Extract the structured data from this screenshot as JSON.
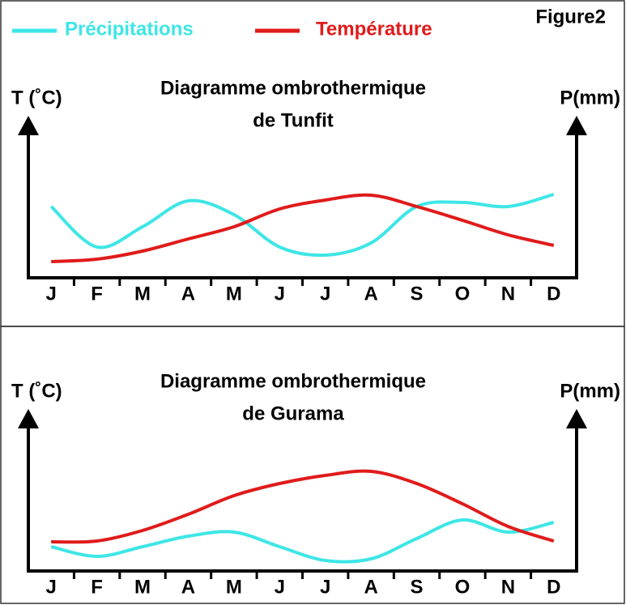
{
  "figure_label": "Figure2",
  "chart_data": [
    {
      "type": "line",
      "title_lines": [
        "Diagramme ombrothermique",
        "de Tunfit"
      ],
      "y_label": "T (˚C)",
      "y2_label": "P(mm)",
      "categories": [
        "J",
        "F",
        "M",
        "A",
        "M",
        "J",
        "J",
        "A",
        "S",
        "O",
        "N",
        "D"
      ],
      "ylim": [
        0,
        100
      ],
      "y2lim": [
        0,
        100
      ],
      "series": [
        {
          "name": "Précipitations",
          "color": "#3ee6e6",
          "axis": "y2",
          "values": [
            44,
            19,
            31.5,
            47.5,
            39,
            19,
            14,
            21.5,
            44,
            46.5,
            44,
            51.5
          ]
        },
        {
          "name": "Température",
          "color": "#e01b1b",
          "values": [
            10,
            11.5,
            16.5,
            24,
            31.5,
            42.5,
            48,
            51,
            44,
            35.5,
            26.5,
            20
          ]
        }
      ]
    },
    {
      "type": "line",
      "title_lines": [
        "Diagramme ombrothermique",
        "de Gurama"
      ],
      "y_label": "T (˚C)",
      "y2_label": "P(mm)",
      "categories": [
        "J",
        "F",
        "M",
        "A",
        "M",
        "J",
        "J",
        "A",
        "S",
        "O",
        "N",
        "D"
      ],
      "ylim": [
        0,
        100
      ],
      "y2lim": [
        0,
        100
      ],
      "series": [
        {
          "name": "Précipitations",
          "color": "#3ee6e6",
          "axis": "y2",
          "values": [
            15,
            9,
            15,
            21.5,
            24,
            15,
            6.5,
            7.5,
            20,
            31.5,
            24,
            30
          ]
        },
        {
          "name": "Température",
          "color": "#e01b1b",
          "values": [
            18,
            18.5,
            25,
            35,
            46.5,
            54,
            59,
            61.5,
            54,
            41.5,
            27.5,
            18.5
          ]
        }
      ]
    }
  ]
}
